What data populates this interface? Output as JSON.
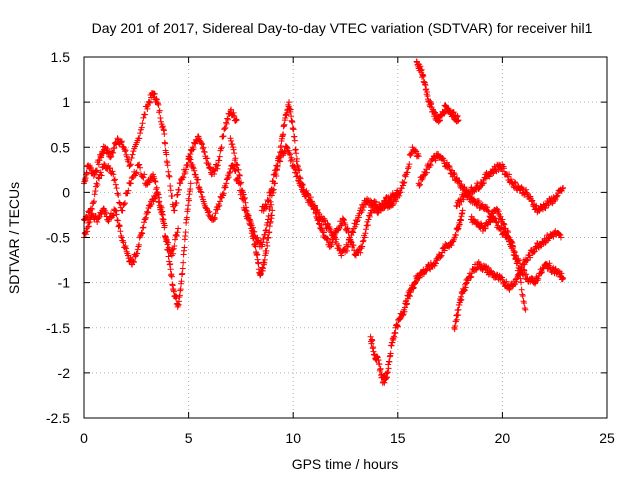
{
  "chart_data": {
    "type": "scatter",
    "title": "Day 201 of 2017, Sidereal Day-to-day VTEC variation (SDTVAR) for receiver hil1",
    "xlabel": "GPS time / hours",
    "ylabel": "SDTVAR / TECUs",
    "xlim": [
      0,
      25
    ],
    "ylim": [
      -2.5,
      1.5
    ],
    "x_ticks": [
      0,
      5,
      10,
      15,
      20,
      25
    ],
    "y_ticks": [
      -2.5,
      -2,
      -1.5,
      -1,
      -0.5,
      0,
      0.5,
      1,
      1.5
    ],
    "x_tick_labels": [
      "0",
      "5",
      "10",
      "15",
      "20",
      "25"
    ],
    "y_tick_labels": [
      "-2.5",
      "-2",
      "-1.5",
      "-1",
      "-0.5",
      "0",
      "0.5",
      "1",
      "1.5"
    ],
    "grid": true,
    "marker": "+",
    "color": "#ff0000",
    "series": [
      {
        "name": "track-1",
        "x": [
          0.0,
          0.2,
          0.5,
          0.8,
          1.0,
          1.3,
          1.6,
          1.9,
          2.2,
          2.6,
          3.0,
          3.3,
          3.5,
          3.8,
          4.0,
          4.3,
          4.6,
          4.9,
          5.2,
          5.5,
          5.8,
          6.1,
          6.4,
          6.7,
          7.0,
          7.3
        ],
        "y": [
          0.1,
          0.3,
          0.2,
          0.4,
          0.5,
          0.4,
          0.6,
          0.5,
          0.3,
          0.6,
          0.95,
          1.1,
          1.0,
          0.7,
          0.3,
          -0.2,
          0.1,
          0.3,
          0.5,
          0.6,
          0.4,
          0.2,
          0.3,
          0.7,
          0.9,
          0.8
        ]
      },
      {
        "name": "track-2",
        "x": [
          0.0,
          0.3,
          0.6,
          0.9,
          1.2,
          1.5,
          1.8,
          2.1,
          2.3,
          2.6,
          2.9,
          3.2,
          3.5,
          3.8,
          4.1,
          4.3,
          4.5,
          4.7,
          4.9,
          5.1
        ],
        "y": [
          -0.3,
          -0.2,
          -0.3,
          -0.2,
          -0.3,
          -0.2,
          -0.5,
          -0.7,
          -0.8,
          -0.6,
          -0.3,
          -0.1,
          0.0,
          -0.3,
          -0.8,
          -1.1,
          -1.25,
          -0.9,
          -0.3,
          0.1
        ]
      },
      {
        "name": "track-3",
        "x": [
          0.0,
          0.3,
          0.6,
          1.0,
          1.4,
          1.8,
          2.2,
          2.6,
          3.0,
          3.3,
          3.6,
          3.9,
          4.2,
          4.5
        ],
        "y": [
          -0.5,
          -0.3,
          0.1,
          0.3,
          0.2,
          -0.2,
          0.1,
          0.3,
          0.1,
          0.2,
          -0.1,
          -0.5,
          -0.7,
          -0.4
        ]
      },
      {
        "name": "track-4",
        "x": [
          5.0,
          5.3,
          5.6,
          5.9,
          6.2,
          6.5,
          6.8,
          7.1,
          7.4,
          7.7,
          8.0,
          8.2,
          8.4,
          8.6,
          8.8,
          9.0
        ],
        "y": [
          0.4,
          0.2,
          0.0,
          -0.2,
          -0.3,
          -0.1,
          0.1,
          0.3,
          0.1,
          -0.2,
          -0.4,
          -0.6,
          -0.9,
          -0.8,
          -0.5,
          -0.2
        ]
      },
      {
        "name": "track-5",
        "x": [
          7.0,
          7.3,
          7.6,
          7.9,
          8.2,
          8.5,
          8.8,
          9.1,
          9.4,
          9.6,
          9.8,
          10.0,
          10.2,
          10.5,
          10.8,
          11.1,
          11.4,
          11.7,
          12.0,
          12.3,
          12.6,
          12.9,
          13.2,
          13.5,
          13.8,
          14.1,
          14.4,
          14.7,
          15.0
        ],
        "y": [
          0.6,
          0.3,
          0.0,
          -0.3,
          -0.5,
          -0.6,
          -0.3,
          0.1,
          0.5,
          0.8,
          1.0,
          0.7,
          0.3,
          0.0,
          -0.1,
          -0.2,
          -0.3,
          -0.4,
          -0.5,
          -0.7,
          -0.6,
          -0.4,
          -0.2,
          -0.1,
          -0.15,
          -0.2,
          -0.1,
          -0.05,
          0.0
        ]
      },
      {
        "name": "track-6",
        "x": [
          8.5,
          8.8,
          9.1,
          9.4,
          9.7,
          10.0,
          10.3,
          10.6,
          10.9,
          11.2,
          11.5,
          11.8,
          12.1,
          12.4,
          12.7,
          13.0,
          13.3,
          13.6,
          13.9,
          14.2,
          14.5,
          14.8,
          15.1,
          15.4,
          15.7,
          16.0
        ],
        "y": [
          -0.2,
          -0.1,
          0.2,
          0.4,
          0.5,
          0.3,
          0.1,
          0.0,
          -0.1,
          -0.3,
          -0.5,
          -0.6,
          -0.4,
          -0.3,
          -0.5,
          -0.7,
          -0.6,
          -0.3,
          -0.1,
          -0.2,
          -0.15,
          -0.1,
          0.0,
          0.2,
          0.5,
          0.4
        ]
      },
      {
        "name": "track-7",
        "x": [
          13.7,
          13.9,
          14.1,
          14.3,
          14.5,
          14.7,
          14.9,
          15.1,
          15.3,
          15.5,
          15.7,
          15.9,
          16.1,
          16.4,
          16.7,
          17.0,
          17.3,
          17.6,
          17.9,
          18.1
        ],
        "y": [
          -1.6,
          -1.8,
          -1.9,
          -2.1,
          -2.0,
          -1.7,
          -1.5,
          -1.4,
          -1.3,
          -1.15,
          -1.05,
          -0.95,
          -0.9,
          -0.85,
          -0.8,
          -0.7,
          -0.6,
          -0.55,
          -0.4,
          -0.2
        ]
      },
      {
        "name": "track-8",
        "x": [
          15.9,
          16.1,
          16.3,
          16.5,
          16.7,
          16.9,
          17.1,
          17.3,
          17.5,
          17.7,
          17.9
        ],
        "y": [
          1.45,
          1.35,
          1.2,
          1.0,
          0.9,
          0.8,
          0.85,
          0.95,
          0.9,
          0.85,
          0.8
        ]
      },
      {
        "name": "track-9",
        "x": [
          16.0,
          16.3,
          16.6,
          16.9,
          17.2,
          17.5,
          17.8,
          18.1,
          18.4,
          18.7,
          19.0,
          19.3,
          19.6,
          19.9,
          20.2,
          20.5,
          20.8,
          21.1
        ],
        "y": [
          0.1,
          0.2,
          0.35,
          0.4,
          0.35,
          0.25,
          0.15,
          0.05,
          -0.05,
          -0.1,
          -0.15,
          -0.2,
          -0.3,
          -0.4,
          -0.5,
          -0.6,
          -0.9,
          -1.3
        ]
      },
      {
        "name": "track-10",
        "x": [
          17.7,
          17.9,
          18.1,
          18.3,
          18.6,
          18.9,
          19.2,
          19.5,
          19.8,
          20.1,
          20.4,
          20.7,
          21.0,
          21.3,
          21.6,
          21.9,
          22.2,
          22.5,
          22.8
        ],
        "y": [
          -1.5,
          -1.3,
          -1.1,
          -1.0,
          -0.85,
          -0.8,
          -0.85,
          -0.9,
          -0.95,
          -1.0,
          -1.05,
          -0.95,
          -0.8,
          -0.7,
          -0.6,
          -0.55,
          -0.5,
          -0.45,
          -0.5
        ]
      },
      {
        "name": "track-11",
        "x": [
          17.8,
          18.1,
          18.4,
          18.7,
          19.0,
          19.3,
          19.6,
          19.9,
          20.2,
          20.5,
          20.8,
          21.1,
          21.4,
          21.7,
          22.0,
          22.3,
          22.6,
          22.9
        ],
        "y": [
          -0.15,
          -0.05,
          0.0,
          0.05,
          0.1,
          0.2,
          0.25,
          0.3,
          0.2,
          0.1,
          0.05,
          0.0,
          -0.1,
          -0.2,
          -0.15,
          -0.1,
          -0.05,
          0.05
        ]
      },
      {
        "name": "track-12",
        "x": [
          18.5,
          18.8,
          19.1,
          19.4,
          19.7,
          20.0,
          20.3,
          20.6,
          20.9,
          21.2,
          21.5,
          21.8,
          22.1,
          22.4,
          22.7,
          22.9
        ],
        "y": [
          -0.3,
          -0.35,
          -0.4,
          -0.3,
          -0.2,
          -0.3,
          -0.5,
          -0.7,
          -0.85,
          -0.95,
          -1.0,
          -0.9,
          -0.8,
          -0.85,
          -0.9,
          -0.95
        ]
      }
    ]
  }
}
